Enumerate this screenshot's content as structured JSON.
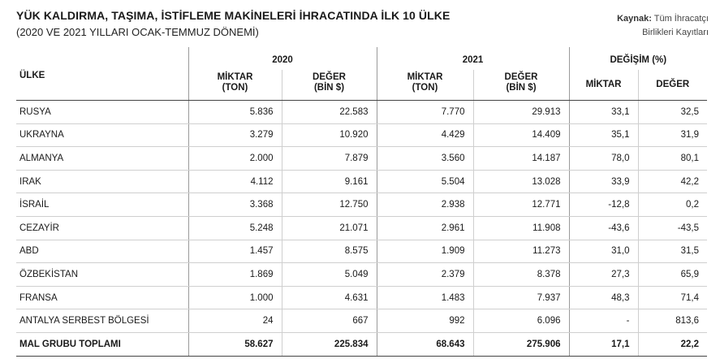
{
  "header": {
    "title": "YÜK KALDIRMA, TAŞIMA, İSTİFLEME MAKİNELERİ İHRACATINDA İLK 10 ÜLKE",
    "subtitle": "(2020 VE 2021 YILLARI OCAK-TEMMUZ DÖNEMİ)",
    "source_label": "Kaynak:",
    "source_line1": "Tüm İhracatçı",
    "source_line2": "Birlikleri Kayıtları"
  },
  "table": {
    "col_country": "ÜLKE",
    "group_2020": "2020",
    "group_2021": "2021",
    "group_change": "DEĞİŞİM (%)",
    "miktar_l1": "MİKTAR",
    "miktar_l2": "(TON)",
    "deger_l1": "DEĞER",
    "deger_l2": "(BİN $)",
    "change_miktar": "MİKTAR",
    "change_deger": "DEĞER",
    "rows": [
      {
        "country": "RUSYA",
        "m2020": "5.836",
        "d2020": "22.583",
        "m2021": "7.770",
        "d2021": "29.913",
        "cm": "33,1",
        "cd": "32,5"
      },
      {
        "country": "UKRAYNA",
        "m2020": "3.279",
        "d2020": "10.920",
        "m2021": "4.429",
        "d2021": "14.409",
        "cm": "35,1",
        "cd": "31,9"
      },
      {
        "country": "ALMANYA",
        "m2020": "2.000",
        "d2020": "7.879",
        "m2021": "3.560",
        "d2021": "14.187",
        "cm": "78,0",
        "cd": "80,1"
      },
      {
        "country": "IRAK",
        "m2020": "4.112",
        "d2020": "9.161",
        "m2021": "5.504",
        "d2021": "13.028",
        "cm": "33,9",
        "cd": "42,2"
      },
      {
        "country": "İSRAİL",
        "m2020": "3.368",
        "d2020": "12.750",
        "m2021": "2.938",
        "d2021": "12.771",
        "cm": "-12,8",
        "cd": "0,2"
      },
      {
        "country": "CEZAYİR",
        "m2020": "5.248",
        "d2020": "21.071",
        "m2021": "2.961",
        "d2021": "11.908",
        "cm": "-43,6",
        "cd": "-43,5"
      },
      {
        "country": "ABD",
        "m2020": "1.457",
        "d2020": "8.575",
        "m2021": "1.909",
        "d2021": "11.273",
        "cm": "31,0",
        "cd": "31,5"
      },
      {
        "country": "ÖZBEKİSTAN",
        "m2020": "1.869",
        "d2020": "5.049",
        "m2021": "2.379",
        "d2021": "8.378",
        "cm": "27,3",
        "cd": "65,9"
      },
      {
        "country": "FRANSA",
        "m2020": "1.000",
        "d2020": "4.631",
        "m2021": "1.483",
        "d2021": "7.937",
        "cm": "48,3",
        "cd": "71,4"
      },
      {
        "country": "ANTALYA SERBEST BÖLGESİ",
        "m2020": "24",
        "d2020": "667",
        "m2021": "992",
        "d2021": "6.096",
        "cm": "-",
        "cd": "813,6"
      }
    ],
    "total": {
      "country": "MAL GRUBU TOPLAMI",
      "m2020": "58.627",
      "d2020": "225.834",
      "m2021": "68.643",
      "d2021": "275.906",
      "cm": "17,1",
      "cd": "22,2"
    }
  }
}
